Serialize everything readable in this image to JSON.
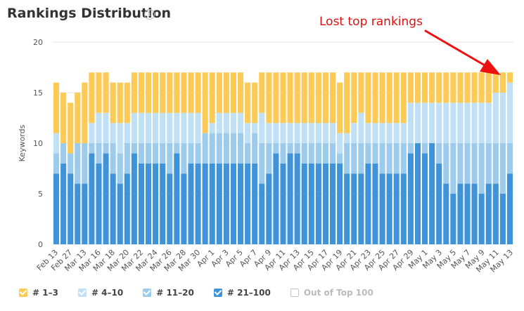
{
  "header": {
    "title": "Rankings Distribution",
    "info_icon": "i"
  },
  "annotation": {
    "text": "Lost top rankings"
  },
  "colors": {
    "top3": "#fdca56",
    "top10": "#bfe0f5",
    "top20": "#9ccbec",
    "top100": "#3f93d8",
    "out": "#c4c4c4",
    "arrow": "#ee1111"
  },
  "chart_data": {
    "type": "bar",
    "stacked": true,
    "ylabel": "Keywords",
    "ylim": [
      0,
      20
    ],
    "yticks": [
      0,
      5,
      10,
      15,
      20
    ],
    "xtick_labels": [
      "Feb 13",
      "Feb 27",
      "Mar 13",
      "Mar 16",
      "Mar 18",
      "Mar 20",
      "Mar 22",
      "Mar 24",
      "Mar 26",
      "Mar 28",
      "Mar 30",
      "Apr 1",
      "Apr 3",
      "Apr 5",
      "Apr 7",
      "Apr 9",
      "Apr 11",
      "Apr 13",
      "Apr 15",
      "Apr 17",
      "Apr 19",
      "Apr 21",
      "Apr 23",
      "Apr 25",
      "Apr 27",
      "Apr 29",
      "May 1",
      "May 3",
      "May 5",
      "May 7",
      "May 9",
      "May 11",
      "May 13"
    ],
    "series": [
      {
        "name": "# 21-100",
        "color": "#3f93d8",
        "values": [
          7,
          8,
          7,
          6,
          6,
          9,
          8,
          9,
          7,
          6,
          7,
          9,
          8,
          8,
          8,
          8,
          7,
          9,
          7,
          8,
          8,
          8,
          8,
          8,
          8,
          8,
          8,
          8,
          8,
          6,
          7,
          9,
          8,
          9,
          9,
          8,
          8,
          8,
          8,
          8,
          8,
          7,
          7,
          7,
          8,
          8,
          7,
          7,
          7,
          7,
          9,
          10,
          9,
          10,
          8,
          6,
          5,
          6,
          6,
          6,
          5,
          6,
          6,
          5,
          7
        ]
      },
      {
        "name": "# 11-20",
        "color": "#9ccbec",
        "values": [
          2,
          2,
          2,
          4,
          4,
          1,
          2,
          1,
          3,
          3,
          3,
          1,
          2,
          2,
          2,
          2,
          3,
          1,
          3,
          2,
          2,
          3,
          3,
          3,
          3,
          3,
          3,
          2,
          3,
          4,
          3,
          1,
          2,
          1,
          1,
          2,
          2,
          2,
          2,
          2,
          1,
          3,
          3,
          3,
          2,
          2,
          3,
          3,
          3,
          3,
          1,
          0,
          1,
          0,
          2,
          4,
          5,
          4,
          4,
          4,
          5,
          4,
          4,
          5,
          3
        ]
      },
      {
        "name": "# 4-10",
        "color": "#bfe0f5",
        "values": [
          2,
          0,
          0,
          0,
          0,
          2,
          3,
          3,
          2,
          3,
          2,
          3,
          3,
          3,
          3,
          3,
          3,
          3,
          3,
          3,
          3,
          0,
          1,
          2,
          2,
          2,
          2,
          2,
          1,
          3,
          2,
          2,
          2,
          2,
          2,
          2,
          2,
          2,
          2,
          2,
          2,
          1,
          2,
          3,
          2,
          2,
          2,
          2,
          2,
          2,
          4,
          4,
          4,
          4,
          4,
          4,
          4,
          4,
          4,
          4,
          4,
          4,
          5,
          5,
          6
        ]
      },
      {
        "name": "# 1-3",
        "color": "#fdca56",
        "values": [
          5,
          5,
          5,
          5,
          6,
          5,
          4,
          4,
          4,
          4,
          4,
          4,
          4,
          4,
          4,
          4,
          4,
          4,
          4,
          4,
          4,
          6,
          5,
          4,
          4,
          4,
          4,
          4,
          4,
          4,
          5,
          5,
          5,
          5,
          5,
          5,
          5,
          5,
          5,
          5,
          5,
          6,
          5,
          4,
          5,
          5,
          5,
          5,
          5,
          5,
          3,
          3,
          3,
          3,
          3,
          3,
          3,
          3,
          3,
          3,
          3,
          3,
          2,
          2,
          1
        ]
      },
      {
        "name": "Out of Top 100",
        "color": "#c4c4c4",
        "enabled": false,
        "values": []
      }
    ]
  },
  "legend": [
    {
      "label": "# 1–3",
      "enabled": true
    },
    {
      "label": "# 4–10",
      "enabled": true
    },
    {
      "label": "# 11–20",
      "enabled": true
    },
    {
      "label": "# 21–100",
      "enabled": true
    },
    {
      "label": "Out of Top 100",
      "enabled": false
    }
  ]
}
